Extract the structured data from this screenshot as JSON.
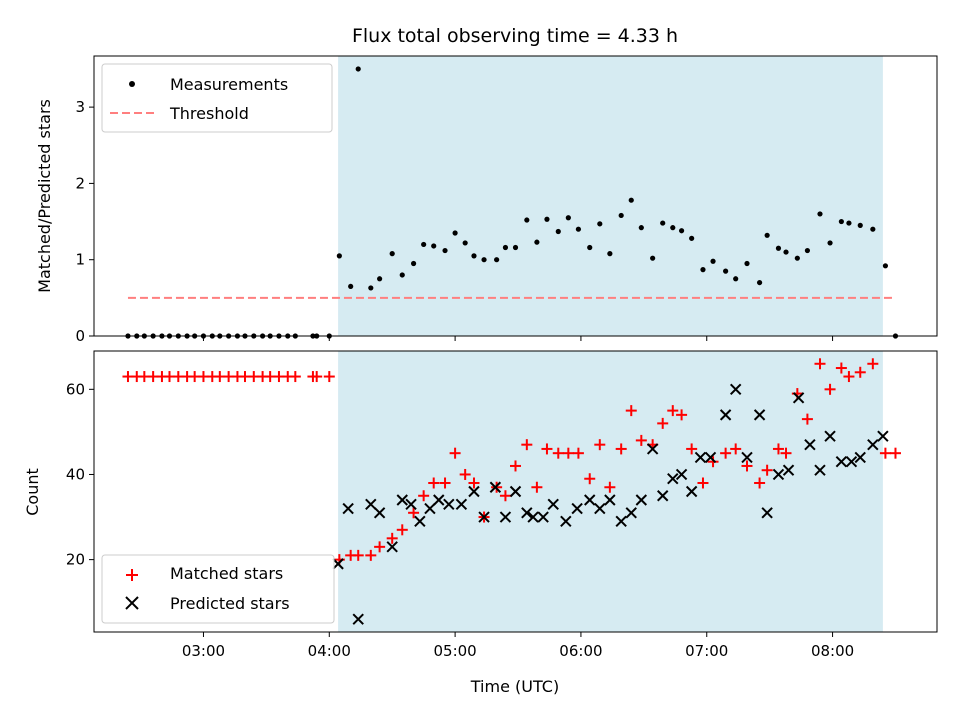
{
  "chart_data": {
    "type": "scatter",
    "title": "Flux total observing time = 4.33 h",
    "xlabel": "Time (UTC)",
    "x_ticks": [
      "03:00",
      "04:00",
      "05:00",
      "06:00",
      "07:00",
      "08:00"
    ],
    "x_tick_hours": [
      3,
      4,
      5,
      6,
      7,
      8
    ],
    "xlim": [
      2.13,
      8.83
    ],
    "highlight_span": [
      4.07,
      8.4
    ],
    "highlight_color": "#add8e6",
    "panels": [
      {
        "ylabel": "Matched/Predicted stars",
        "ylim": [
          0,
          3.67
        ],
        "y_ticks": [
          0,
          1,
          2,
          3
        ],
        "legend_position": "upper-left",
        "threshold": {
          "name": "Threshold",
          "value": 0.5,
          "x_range": [
            2.4,
            8.5
          ],
          "color": "#ff7f7f"
        },
        "series": [
          {
            "name": "Measurements",
            "marker": "dot",
            "color": "#000000",
            "x": [
              2.4,
              2.47,
              2.53,
              2.6,
              2.67,
              2.73,
              2.8,
              2.87,
              2.93,
              3.0,
              3.07,
              3.13,
              3.2,
              3.27,
              3.33,
              3.4,
              3.47,
              3.53,
              3.6,
              3.67,
              3.73,
              3.87,
              3.9,
              4.0,
              4.08,
              4.17,
              4.23,
              4.33,
              4.4,
              4.5,
              4.58,
              4.67,
              4.75,
              4.83,
              4.92,
              5.0,
              5.08,
              5.15,
              5.23,
              5.33,
              5.4,
              5.48,
              5.57,
              5.65,
              5.73,
              5.82,
              5.9,
              5.98,
              6.07,
              6.15,
              6.23,
              6.32,
              6.4,
              6.48,
              6.57,
              6.65,
              6.73,
              6.8,
              6.88,
              6.97,
              7.05,
              7.15,
              7.23,
              7.32,
              7.42,
              7.48,
              7.57,
              7.63,
              7.72,
              7.8,
              7.9,
              7.98,
              8.07,
              8.13,
              8.22,
              8.32,
              8.42,
              8.5
            ],
            "y": [
              0,
              0,
              0,
              0,
              0,
              0,
              0,
              0,
              0,
              0,
              0,
              0,
              0,
              0,
              0,
              0,
              0,
              0,
              0,
              0,
              0,
              0,
              0,
              0,
              1.05,
              0.65,
              3.5,
              0.63,
              0.75,
              1.08,
              0.8,
              0.95,
              1.2,
              1.18,
              1.12,
              1.35,
              1.22,
              1.05,
              1.0,
              1.0,
              1.16,
              1.16,
              1.52,
              1.23,
              1.53,
              1.37,
              1.55,
              1.4,
              1.16,
              1.47,
              1.08,
              1.58,
              1.78,
              1.42,
              1.02,
              1.48,
              1.42,
              1.38,
              1.28,
              0.87,
              0.98,
              0.85,
              0.75,
              0.95,
              0.7,
              1.32,
              1.15,
              1.1,
              1.02,
              1.12,
              1.6,
              1.22,
              1.5,
              1.48,
              1.45,
              1.4,
              0.92,
              0
            ]
          }
        ]
      },
      {
        "ylabel": "Count",
        "ylim": [
          3,
          69
        ],
        "y_ticks": [
          20,
          40,
          60
        ],
        "legend_position": "lower-left",
        "series": [
          {
            "name": "Matched stars",
            "marker": "plus",
            "color": "#ff0000",
            "x": [
              2.4,
              2.47,
              2.53,
              2.6,
              2.67,
              2.73,
              2.8,
              2.87,
              2.93,
              3.0,
              3.07,
              3.13,
              3.2,
              3.27,
              3.33,
              3.4,
              3.47,
              3.53,
              3.6,
              3.67,
              3.73,
              3.87,
              3.9,
              4.0,
              4.08,
              4.17,
              4.23,
              4.33,
              4.4,
              4.5,
              4.58,
              4.67,
              4.75,
              4.83,
              4.92,
              5.0,
              5.08,
              5.15,
              5.23,
              5.33,
              5.4,
              5.48,
              5.57,
              5.65,
              5.73,
              5.82,
              5.9,
              5.98,
              6.07,
              6.15,
              6.23,
              6.32,
              6.4,
              6.48,
              6.57,
              6.65,
              6.73,
              6.8,
              6.88,
              6.97,
              7.05,
              7.15,
              7.23,
              7.32,
              7.42,
              7.48,
              7.57,
              7.63,
              7.72,
              7.8,
              7.9,
              7.98,
              8.07,
              8.13,
              8.22,
              8.32,
              8.42,
              8.5
            ],
            "y": [
              63,
              63,
              63,
              63,
              63,
              63,
              63,
              63,
              63,
              63,
              63,
              63,
              63,
              63,
              63,
              63,
              63,
              63,
              63,
              63,
              63,
              63,
              63,
              63,
              20,
              21,
              21,
              21,
              23,
              25,
              27,
              31,
              35,
              38,
              38,
              45,
              40,
              38,
              30,
              37,
              35,
              42,
              47,
              37,
              46,
              45,
              45,
              45,
              39,
              47,
              37,
              46,
              55,
              48,
              47,
              52,
              55,
              54,
              46,
              38,
              43,
              45,
              46,
              42,
              38,
              41,
              46,
              45,
              59,
              53,
              66,
              60,
              65,
              63,
              64,
              66,
              45,
              45
            ]
          },
          {
            "name": "Predicted stars",
            "marker": "x",
            "color": "#000000",
            "x": [
              4.07,
              4.15,
              4.23,
              4.33,
              4.4,
              4.5,
              4.58,
              4.65,
              4.72,
              4.8,
              4.87,
              4.95,
              5.05,
              5.15,
              5.23,
              5.32,
              5.4,
              5.48,
              5.57,
              5.62,
              5.7,
              5.78,
              5.88,
              5.97,
              6.07,
              6.15,
              6.23,
              6.32,
              6.4,
              6.48,
              6.57,
              6.65,
              6.73,
              6.8,
              6.88,
              6.95,
              7.03,
              7.15,
              7.23,
              7.32,
              7.42,
              7.48,
              7.57,
              7.65,
              7.73,
              7.82,
              7.9,
              7.98,
              8.07,
              8.15,
              8.22,
              8.32,
              8.4
            ],
            "y": [
              19,
              32,
              6,
              33,
              31,
              23,
              34,
              33,
              29,
              32,
              34,
              33,
              33,
              36,
              30,
              37,
              30,
              36,
              31,
              30,
              30,
              33,
              29,
              32,
              34,
              32,
              34,
              29,
              31,
              34,
              46,
              35,
              39,
              40,
              36,
              44,
              44,
              54,
              60,
              44,
              54,
              31,
              40,
              41,
              58,
              47,
              41,
              49,
              43,
              43,
              44,
              47,
              49
            ]
          }
        ]
      }
    ]
  }
}
